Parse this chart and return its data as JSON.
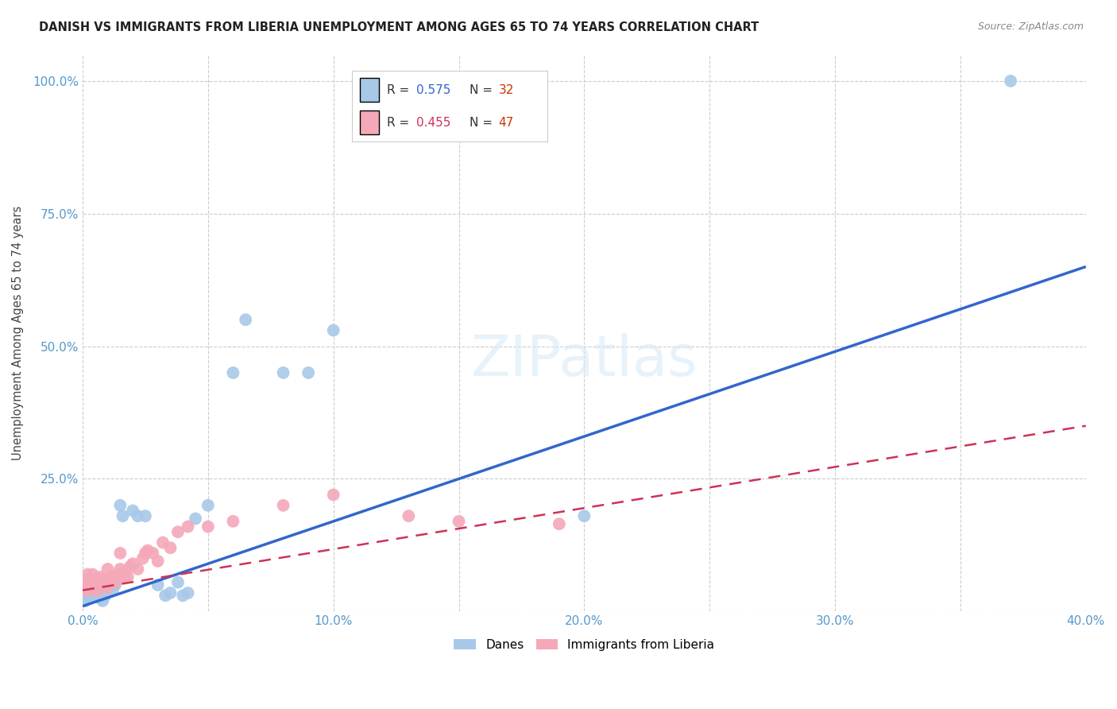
{
  "title": "DANISH VS IMMIGRANTS FROM LIBERIA UNEMPLOYMENT AMONG AGES 65 TO 74 YEARS CORRELATION CHART",
  "source": "Source: ZipAtlas.com",
  "ylabel": "Unemployment Among Ages 65 to 74 years",
  "xlim": [
    0,
    0.4
  ],
  "ylim": [
    0,
    1.05
  ],
  "xtick_positions": [
    0.0,
    0.05,
    0.1,
    0.15,
    0.2,
    0.25,
    0.3,
    0.35,
    0.4
  ],
  "xticklabels": [
    "0.0%",
    "",
    "10.0%",
    "",
    "20.0%",
    "",
    "30.0%",
    "",
    "40.0%"
  ],
  "ytick_positions": [
    0.0,
    0.25,
    0.5,
    0.75,
    1.0
  ],
  "yticklabels": [
    "",
    "25.0%",
    "50.0%",
    "75.0%",
    "100.0%"
  ],
  "background_color": "#ffffff",
  "danes_color": "#a8c8e8",
  "danes_line_color": "#3366cc",
  "liberia_color": "#f4a8b8",
  "liberia_line_color": "#cc3355",
  "danes_r": "0.575",
  "danes_n": "32",
  "liberia_r": "0.455",
  "liberia_n": "47",
  "danes_x": [
    0.001,
    0.002,
    0.003,
    0.004,
    0.005,
    0.006,
    0.007,
    0.008,
    0.009,
    0.01,
    0.012,
    0.013,
    0.015,
    0.016,
    0.02,
    0.022,
    0.025,
    0.03,
    0.033,
    0.035,
    0.038,
    0.04,
    0.042,
    0.045,
    0.05,
    0.06,
    0.065,
    0.08,
    0.09,
    0.1,
    0.2,
    0.37
  ],
  "danes_y": [
    0.02,
    0.025,
    0.03,
    0.03,
    0.04,
    0.03,
    0.025,
    0.02,
    0.03,
    0.05,
    0.04,
    0.05,
    0.2,
    0.18,
    0.19,
    0.18,
    0.18,
    0.05,
    0.03,
    0.035,
    0.055,
    0.03,
    0.035,
    0.175,
    0.2,
    0.45,
    0.55,
    0.45,
    0.45,
    0.53,
    0.18,
    1.0
  ],
  "liberia_x": [
    0.001,
    0.001,
    0.002,
    0.002,
    0.003,
    0.003,
    0.004,
    0.004,
    0.005,
    0.005,
    0.006,
    0.006,
    0.007,
    0.007,
    0.008,
    0.008,
    0.009,
    0.01,
    0.01,
    0.011,
    0.012,
    0.013,
    0.014,
    0.015,
    0.015,
    0.016,
    0.017,
    0.018,
    0.019,
    0.02,
    0.022,
    0.024,
    0.025,
    0.026,
    0.028,
    0.03,
    0.032,
    0.035,
    0.038,
    0.042,
    0.05,
    0.06,
    0.08,
    0.1,
    0.13,
    0.15,
    0.19
  ],
  "liberia_y": [
    0.04,
    0.06,
    0.05,
    0.07,
    0.04,
    0.06,
    0.05,
    0.07,
    0.05,
    0.06,
    0.04,
    0.06,
    0.05,
    0.065,
    0.05,
    0.06,
    0.055,
    0.045,
    0.08,
    0.06,
    0.065,
    0.055,
    0.07,
    0.08,
    0.11,
    0.065,
    0.075,
    0.065,
    0.085,
    0.09,
    0.08,
    0.1,
    0.11,
    0.115,
    0.11,
    0.095,
    0.13,
    0.12,
    0.15,
    0.16,
    0.16,
    0.17,
    0.2,
    0.22,
    0.18,
    0.17,
    0.165
  ],
  "danes_line_x0": 0.0,
  "danes_line_y0": 0.01,
  "danes_line_x1": 0.4,
  "danes_line_y1": 0.65,
  "liberia_line_x0": 0.0,
  "liberia_line_y0": 0.04,
  "liberia_line_x1": 0.4,
  "liberia_line_y1": 0.35
}
